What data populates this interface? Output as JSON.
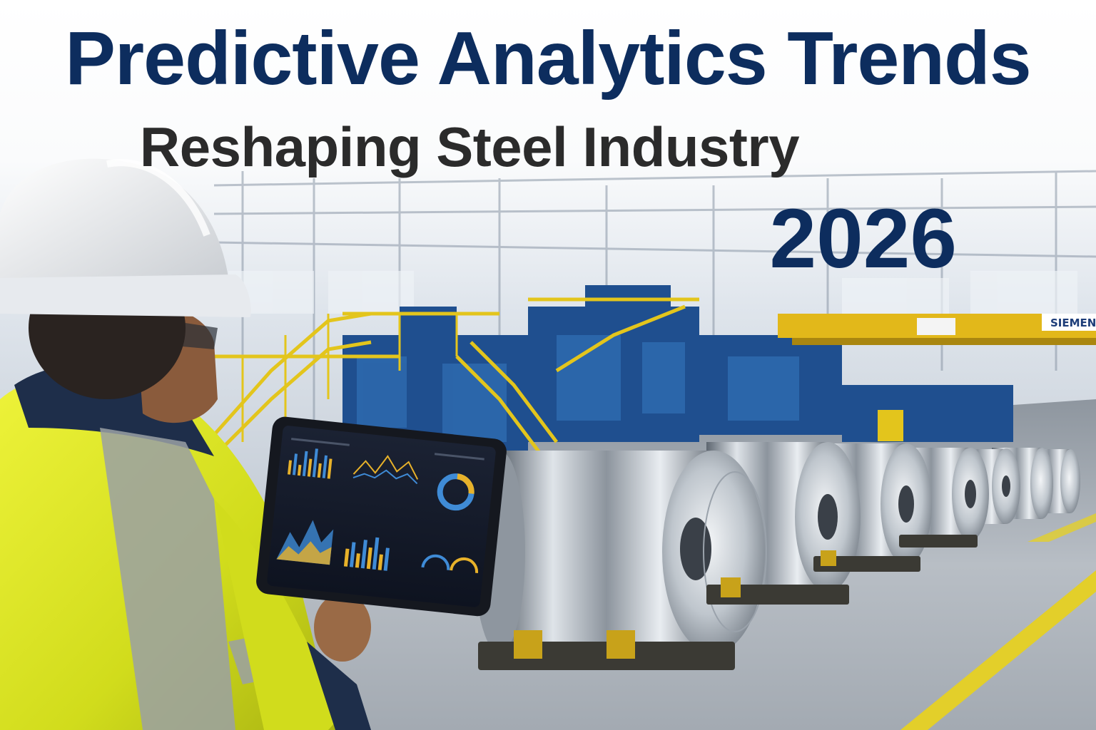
{
  "headline": {
    "line1": "Predictive Analytics Trends",
    "line2": "Reshaping Steel Industry",
    "year": "2026"
  },
  "scene": {
    "crane_sign": "SIEMENS",
    "colors": {
      "title_navy": "#0d2d5e",
      "title_dark": "#2b2b2b",
      "hi_vis_yellow": "#d9e21c",
      "structure_blue": "#1f4f8f",
      "railing_yellow": "#e3c51c",
      "steel": "#b9c0c8"
    },
    "icons": [
      "hard-hat-icon",
      "tablet-dashboard-icon",
      "steel-coil-icon"
    ]
  }
}
